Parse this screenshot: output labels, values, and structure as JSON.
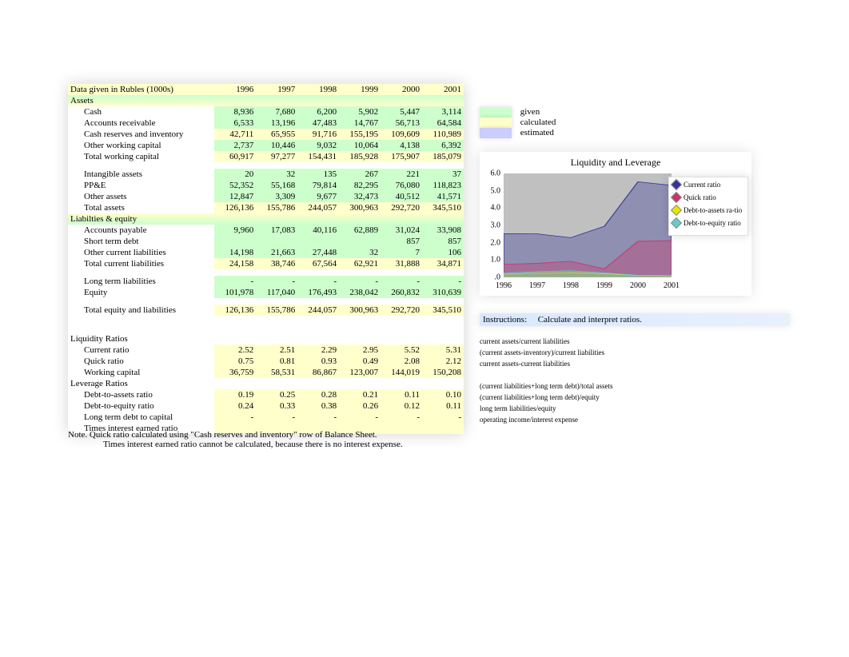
{
  "header": {
    "title": "Data given in Rubles (1000s)",
    "years": [
      "1996",
      "1997",
      "1998",
      "1999",
      "2000",
      "2001"
    ]
  },
  "legend_swatches": {
    "given": {
      "color": "#ccffcc",
      "label": "given"
    },
    "calculated": {
      "color": "#ffffcc",
      "label": "calculated"
    },
    "estimated": {
      "color": "#ccccff",
      "label": "estimated"
    }
  },
  "sections": [
    {
      "type": "section",
      "label": "Assets",
      "bg": "bg-head-a"
    },
    {
      "type": "row",
      "label": "Cash",
      "indent": 1,
      "bg": "bg-given",
      "vals": [
        "8,936",
        "7,680",
        "6,200",
        "5,902",
        "5,447",
        "3,114"
      ]
    },
    {
      "type": "row",
      "label": "Accounts receivable",
      "indent": 1,
      "bg": "bg-given",
      "vals": [
        "6,533",
        "13,196",
        "47,483",
        "14,767",
        "56,713",
        "64,584"
      ]
    },
    {
      "type": "row",
      "label": "Cash reserves and inventory",
      "indent": 1,
      "bg": "bg-calc",
      "vals": [
        "42,711",
        "65,955",
        "91,716",
        "155,195",
        "109,609",
        "110,989"
      ]
    },
    {
      "type": "row",
      "label": "Other working capital",
      "indent": 1,
      "bg": "bg-given",
      "vals": [
        "2,737",
        "10,446",
        "9,032",
        "10,064",
        "4,138",
        "6,392"
      ]
    },
    {
      "type": "row",
      "label": "Total working capital",
      "indent": 1,
      "bg": "bg-calc",
      "vals": [
        "60,917",
        "97,277",
        "154,431",
        "185,928",
        "175,907",
        "185,079"
      ]
    },
    {
      "type": "spacer"
    },
    {
      "type": "row",
      "label": "Intangible assets",
      "indent": 1,
      "bg": "bg-given",
      "vals": [
        "20",
        "32",
        "135",
        "267",
        "221",
        "37"
      ]
    },
    {
      "type": "row",
      "label": "PP&E",
      "indent": 1,
      "bg": "bg-given",
      "vals": [
        "52,352",
        "55,168",
        "79,814",
        "82,295",
        "76,080",
        "118,823"
      ]
    },
    {
      "type": "row",
      "label": "Other assets",
      "indent": 1,
      "bg": "bg-given",
      "vals": [
        "12,847",
        "3,309",
        "9,677",
        "32,473",
        "40,512",
        "41,571"
      ]
    },
    {
      "type": "row",
      "label": "Total assets",
      "indent": 1,
      "bg": "bg-calc",
      "vals": [
        "126,136",
        "155,786",
        "244,057",
        "300,963",
        "292,720",
        "345,510"
      ]
    },
    {
      "type": "section",
      "label": "Liabilties & equity",
      "bg": "bg-head-b"
    },
    {
      "type": "row",
      "label": "Accounts payable",
      "indent": 1,
      "bg": "bg-given",
      "vals": [
        "9,960",
        "17,083",
        "40,116",
        "62,889",
        "31,024",
        "33,908"
      ]
    },
    {
      "type": "row",
      "label": "Short term debt",
      "indent": 1,
      "bg": "bg-given",
      "vals": [
        "",
        "",
        "",
        "",
        "857",
        "857"
      ]
    },
    {
      "type": "row",
      "label": "Other current liabilities",
      "indent": 1,
      "bg": "bg-given",
      "vals": [
        "14,198",
        "21,663",
        "27,448",
        "32",
        "7",
        "106"
      ]
    },
    {
      "type": "row",
      "label": "Total current liabilities",
      "indent": 1,
      "bg": "bg-calc",
      "vals": [
        "24,158",
        "38,746",
        "67,564",
        "62,921",
        "31,888",
        "34,871"
      ]
    },
    {
      "type": "spacer"
    },
    {
      "type": "row",
      "label": "Long term liabilities",
      "indent": 1,
      "bg": "bg-given",
      "vals": [
        "-",
        "-",
        "-",
        "-",
        "-",
        "-"
      ]
    },
    {
      "type": "row",
      "label": "Equity",
      "indent": 1,
      "bg": "bg-given",
      "vals": [
        "101,978",
        "117,040",
        "176,493",
        "238,042",
        "260,832",
        "310,639"
      ]
    },
    {
      "type": "spacer"
    },
    {
      "type": "row",
      "label": "Total equity and liabilities",
      "indent": 1,
      "bg": "bg-calc",
      "vals": [
        "126,136",
        "155,786",
        "244,057",
        "300,963",
        "292,720",
        "345,510"
      ]
    },
    {
      "type": "gap"
    },
    {
      "type": "section",
      "label": "Liquidity Ratios",
      "bg": ""
    },
    {
      "type": "row",
      "label": "Current ratio",
      "indent": 1,
      "bg": "bg-calc",
      "vals": [
        "2.52",
        "2.51",
        "2.29",
        "2.95",
        "5.52",
        "5.31"
      ]
    },
    {
      "type": "row",
      "label": "Quick ratio",
      "indent": 1,
      "bg": "bg-calc",
      "vals": [
        "0.75",
        "0.81",
        "0.93",
        "0.49",
        "2.08",
        "2.12"
      ]
    },
    {
      "type": "row",
      "label": "Working capital",
      "indent": 1,
      "bg": "bg-calc",
      "vals": [
        "36,759",
        "58,531",
        "86,867",
        "123,007",
        "144,019",
        "150,208"
      ]
    },
    {
      "type": "section",
      "label": "Leverage Ratios",
      "bg": ""
    },
    {
      "type": "row",
      "label": "Debt-to-assets ratio",
      "indent": 1,
      "bg": "bg-calc",
      "vals": [
        "0.19",
        "0.25",
        "0.28",
        "0.21",
        "0.11",
        "0.10"
      ]
    },
    {
      "type": "row",
      "label": "Debt-to-equity ratio",
      "indent": 1,
      "bg": "bg-calc",
      "vals": [
        "0.24",
        "0.33",
        "0.38",
        "0.26",
        "0.12",
        "0.11"
      ]
    },
    {
      "type": "row",
      "label": "Long term debt to capital",
      "indent": 1,
      "bg": "bg-calc",
      "vals": [
        "-",
        "-",
        "-",
        "-",
        "-",
        "-"
      ]
    },
    {
      "type": "row",
      "label": "Times interest earned ratio",
      "indent": 1,
      "bg": "bg-calc",
      "vals": [
        "",
        "",
        "",
        "",
        "",
        ""
      ]
    }
  ],
  "chart": {
    "title": "Liquidity and Leverage",
    "ylim": [
      0,
      6
    ],
    "yticks": [
      "6.0",
      "5.0",
      "4.0",
      "3.0",
      "2.0",
      "1.0",
      ".0"
    ],
    "xticks": [
      "1996",
      "1997",
      "1998",
      "1999",
      "2000",
      "2001"
    ],
    "plot_bg": "#c0c0c0",
    "series": [
      {
        "name": "Current ratio",
        "color": "#333399",
        "values": [
          2.52,
          2.51,
          2.29,
          2.95,
          5.52,
          5.31
        ]
      },
      {
        "name": "Quick ratio",
        "color": "#cc3366",
        "values": [
          0.75,
          0.81,
          0.93,
          0.49,
          2.08,
          2.12
        ]
      },
      {
        "name": "Debt-to-assets ra-tio",
        "color": "#e6e600",
        "values": [
          0.19,
          0.25,
          0.28,
          0.21,
          0.11,
          0.1
        ]
      },
      {
        "name": "Debt-to-equity ratio",
        "color": "#66cccc",
        "values": [
          0.24,
          0.33,
          0.38,
          0.26,
          0.12,
          0.11
        ]
      }
    ]
  },
  "instructions": {
    "label": "Instructions:",
    "text": "Calculate and interpret ratios."
  },
  "formulas": [
    "current assets/current liabilities",
    "(current assets-inventory)/current liabilities",
    "current assets-current liabilities",
    "",
    "(current liabilities+long term debt)/total assets",
    "(current liabilities+long term debt)/equity",
    "long term liabilities/equity",
    "operating income/interest expense"
  ],
  "notes": {
    "line1": "Note.  Quick ratio calculated using \"Cash reserves and inventory\" row of Balance Sheet.",
    "line2": "Times interest earned ratio cannot be calculated, because there is no interest expense."
  }
}
